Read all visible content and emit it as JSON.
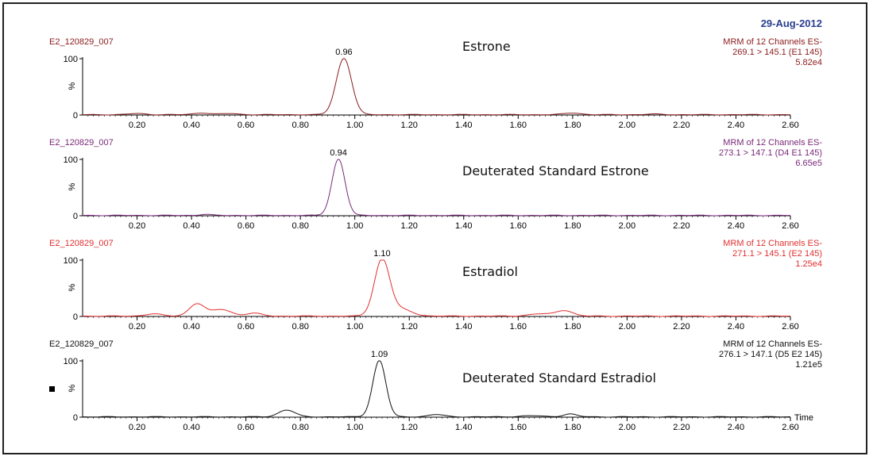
{
  "date": "29-Aug-2012",
  "x_axis": {
    "ticks": [
      "0.20",
      "0.40",
      "0.60",
      "0.80",
      "1.00",
      "1.20",
      "1.40",
      "1.60",
      "1.80",
      "2.00",
      "2.20",
      "2.40",
      "2.60"
    ],
    "tick_values": [
      0.2,
      0.4,
      0.6,
      0.8,
      1.0,
      1.2,
      1.4,
      1.6,
      1.8,
      2.0,
      2.2,
      2.4,
      2.6
    ],
    "label": "Time",
    "min": 0.0,
    "max": 2.6
  },
  "y_axis": {
    "ticks": [
      "100",
      "0"
    ],
    "label": "%"
  },
  "chart_data": [
    {
      "type": "line",
      "file": "E2_120829_007",
      "compound": "Estrone",
      "channel_line1": "MRM of 12 Channels ES-",
      "channel_line2": "269.1 > 145.1 (E1 145)",
      "intensity": "5.82e4",
      "peak_label": "0.96",
      "peak_x": 0.96,
      "peak_width": 0.028,
      "color": "#8a1c1c",
      "ylim": [
        0,
        100
      ],
      "bumps": [
        [
          0.2,
          2,
          0.03
        ],
        [
          0.44,
          3,
          0.03
        ],
        [
          0.54,
          2,
          0.03
        ],
        [
          1.8,
          3,
          0.03
        ],
        [
          2.1,
          1,
          0.03
        ]
      ]
    },
    {
      "type": "line",
      "file": "E2_120829_007",
      "compound": "Deuterated Standard Estrone",
      "channel_line1": "MRM of 12 Channels ES-",
      "channel_line2": "273.1 > 147.1 (D4 E1 145)",
      "intensity": "6.65e5",
      "peak_label": "0.94",
      "peak_x": 0.94,
      "peak_width": 0.024,
      "color": "#7a2a7a",
      "ylim": [
        0,
        100
      ],
      "bumps": [
        [
          0.45,
          2,
          0.02
        ]
      ]
    },
    {
      "type": "line",
      "file": "E2_120829_007",
      "compound": "Estradiol",
      "channel_line1": "MRM of 12 Channels ES-",
      "channel_line2": "271.1 > 145.1 (E2 145)",
      "intensity": "1.25e4",
      "peak_label": "1.10",
      "peak_x": 1.1,
      "peak_width": 0.028,
      "color": "#e03030",
      "ylim": [
        0,
        100
      ],
      "bumps": [
        [
          0.26,
          4,
          0.03
        ],
        [
          0.42,
          22,
          0.028
        ],
        [
          0.51,
          12,
          0.035
        ],
        [
          0.63,
          5,
          0.03
        ],
        [
          1.17,
          12,
          0.04
        ],
        [
          1.77,
          10,
          0.03
        ],
        [
          1.68,
          4,
          0.04
        ]
      ]
    },
    {
      "type": "line",
      "file": "E2_120829_007",
      "compound": "Deuterated Standard Estradiol",
      "channel_line1": "MRM of 12 Channels ES-",
      "channel_line2": "276.1 > 147.1 (D5 E2 145)",
      "intensity": "1.21e5",
      "peak_label": "1.09",
      "peak_x": 1.09,
      "peak_width": 0.024,
      "color": "#111111",
      "ylim": [
        0,
        100
      ],
      "bumps": [
        [
          0.75,
          12,
          0.03
        ],
        [
          1.3,
          4,
          0.03
        ],
        [
          1.79,
          5,
          0.025
        ],
        [
          1.65,
          2,
          0.04
        ]
      ]
    }
  ],
  "colors": {
    "date": "#2a3f8f",
    "file_label_top": "#8a1c1c",
    "axis": "#000000"
  }
}
